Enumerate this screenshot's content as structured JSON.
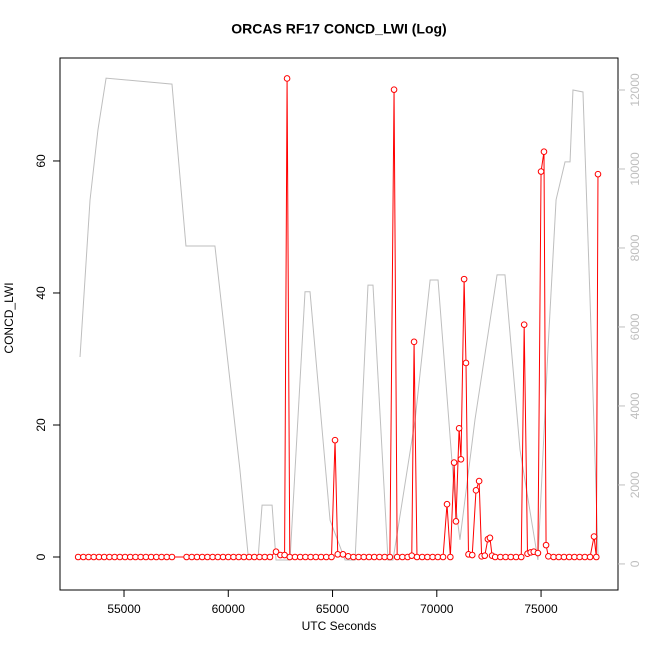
{
  "chart_data": {
    "type": "line",
    "title": "ORCAS RF17 CONCD_LWI (Log)",
    "xlabel": "UTC Seconds",
    "ylabel": "CONCD_LWI",
    "xlim": [
      51930,
      78690
    ],
    "xticks": [
      55000,
      60000,
      65000,
      70000,
      75000
    ],
    "ylim": [
      -5,
      75.6
    ],
    "yticks": [
      0,
      20,
      40,
      60
    ],
    "y2lim": [
      -660,
      12810
    ],
    "y2ticks": [
      0,
      2000,
      4000,
      6000,
      8000,
      10000,
      12000
    ],
    "series": [
      {
        "color": "#ff0000",
        "markers": true,
        "x": [
          52800,
          53050,
          53300,
          53550,
          53800,
          54050,
          54300,
          54550,
          54800,
          55050,
          55300,
          55550,
          55800,
          56050,
          56300,
          56550,
          56800,
          57050,
          57300,
          58000,
          58250,
          58500,
          58750,
          59000,
          59250,
          59500,
          59750,
          60000,
          60250,
          60500,
          60750,
          61000,
          61250,
          61500,
          61750,
          62000,
          62290,
          62500,
          62700,
          62820,
          62950,
          63200,
          63450,
          63700,
          63950,
          64200,
          64450,
          64700,
          64950,
          65120,
          65250,
          65500,
          65750,
          66000,
          66250,
          66500,
          66750,
          67000,
          67250,
          67500,
          67750,
          67950,
          68100,
          68350,
          68600,
          68800,
          68910,
          69050,
          69300,
          69550,
          69800,
          70050,
          70300,
          70490,
          70650,
          70830,
          70920,
          71070,
          71160,
          71310,
          71400,
          71520,
          71700,
          71880,
          72030,
          72150,
          72300,
          72450,
          72550,
          72650,
          72800,
          73050,
          73300,
          73550,
          73800,
          74050,
          74190,
          74350,
          74500,
          74650,
          74850,
          75000,
          75140,
          75240,
          75350,
          75600,
          75850,
          76100,
          76350,
          76600,
          76850,
          77100,
          77350,
          77540,
          77650,
          77730
        ],
        "values": [
          0,
          0,
          0,
          0,
          0,
          0,
          0,
          0,
          0,
          0,
          0,
          0,
          0,
          0,
          0,
          0,
          0,
          0,
          0,
          0,
          0,
          0,
          0,
          0,
          0,
          0,
          0,
          0,
          0,
          0,
          0,
          0,
          0,
          0,
          0,
          0,
          0.8,
          0.3,
          0.3,
          72.5,
          0,
          0,
          0,
          0,
          0,
          0,
          0,
          0,
          0,
          17.7,
          0.4,
          0.4,
          0.1,
          0,
          0,
          0,
          0,
          0,
          0,
          0,
          0,
          70.8,
          0,
          0,
          0,
          0.2,
          32.6,
          0,
          0,
          0,
          0,
          0,
          0,
          8.0,
          0,
          14.3,
          5.4,
          19.5,
          14.8,
          42.1,
          29.4,
          0.4,
          0.3,
          10.1,
          11.5,
          0.1,
          0.2,
          2.7,
          2.9,
          0.2,
          0,
          0,
          0,
          0,
          0,
          0,
          35.2,
          0.5,
          0.7,
          0.8,
          0.6,
          58.4,
          61.4,
          1.8,
          0.1,
          0,
          0,
          0,
          0,
          0,
          0,
          0,
          0,
          3.1,
          0,
          58.0
        ]
      },
      {
        "color": "#bebebe",
        "axis": "y2",
        "markers": false,
        "x": [
          52890,
          53370,
          53750,
          54140,
          57300,
          57970,
          59360,
          60560,
          60950,
          61430,
          61620,
          62100,
          62290,
          62960,
          63680,
          63920,
          64880,
          65600,
          66080,
          66700,
          66940,
          67660,
          67900,
          68960,
          69680,
          70060,
          70870,
          71110,
          71830,
          72890,
          73270,
          73990,
          74850,
          75330,
          75720,
          76150,
          76390,
          76530,
          77010,
          77350,
          77740
        ],
        "values": [
          5240,
          9215,
          10990,
          12300,
          12150,
          8050,
          8050,
          2380,
          230,
          150,
          1490,
          1490,
          100,
          100,
          6890,
          6890,
          1110,
          100,
          100,
          7060,
          7060,
          100,
          100,
          3650,
          7190,
          7190,
          1620,
          610,
          3650,
          7320,
          7320,
          2890,
          100,
          5420,
          9220,
          10180,
          10180,
          12000,
          11950,
          6680,
          100
        ]
      }
    ]
  }
}
